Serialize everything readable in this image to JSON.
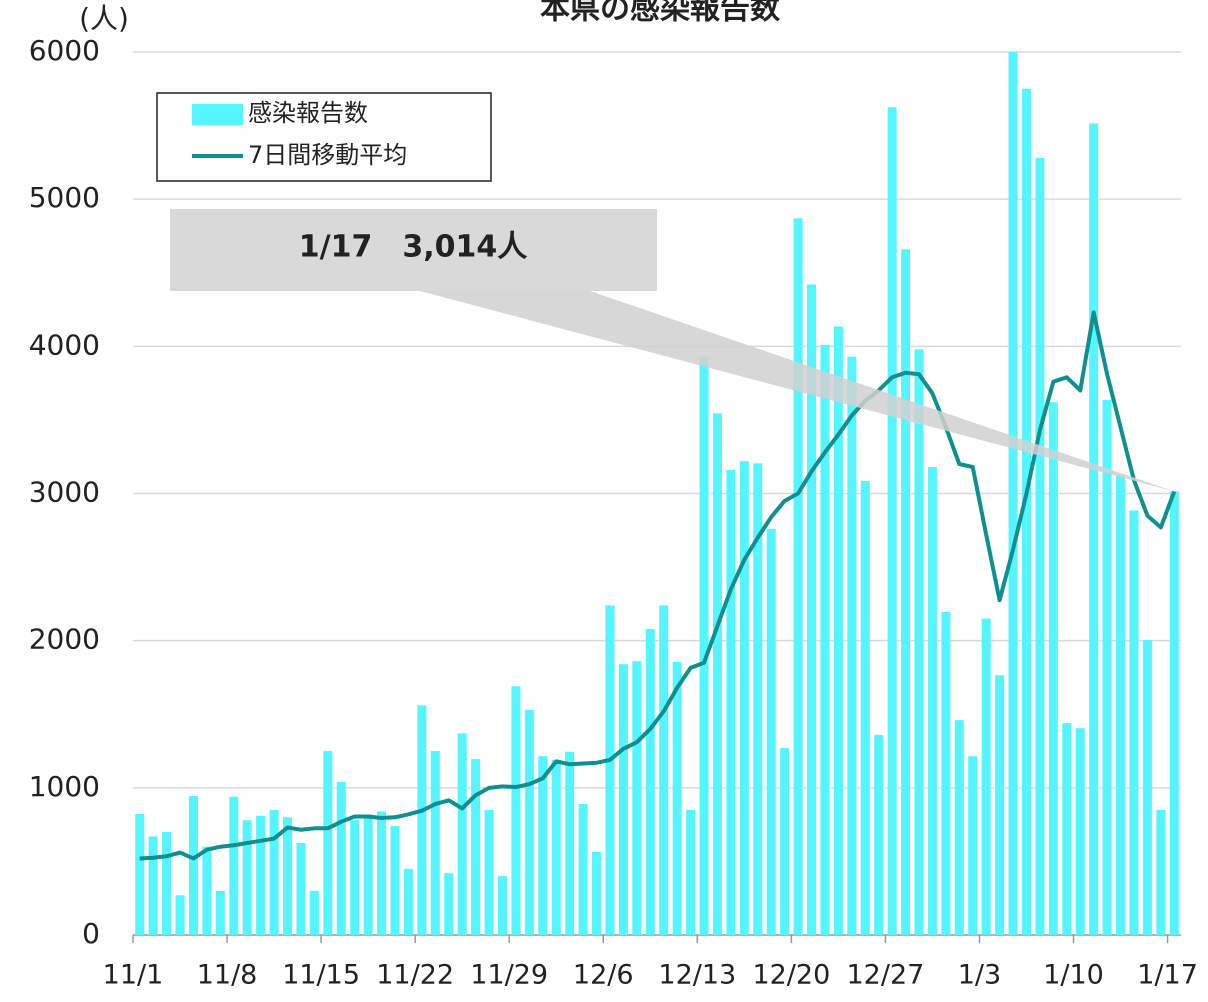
{
  "chart_data": {
    "type": "bar_line",
    "title": "本県の感染報告数",
    "ylabel": "(人)",
    "annotation": "1/17　3,014人",
    "categories": [
      "11/1",
      null,
      null,
      null,
      null,
      null,
      null,
      "11/8",
      null,
      null,
      null,
      null,
      null,
      null,
      "11/15",
      null,
      null,
      null,
      null,
      null,
      null,
      "11/22",
      null,
      null,
      null,
      null,
      null,
      null,
      "11/29",
      null,
      null,
      null,
      null,
      null,
      null,
      "12/6",
      null,
      null,
      null,
      null,
      null,
      null,
      "12/13",
      null,
      null,
      null,
      null,
      null,
      null,
      "12/20",
      null,
      null,
      null,
      null,
      null,
      null,
      "12/27",
      null,
      null,
      null,
      null,
      null,
      null,
      "1/3",
      null,
      null,
      null,
      null,
      null,
      null,
      "1/10",
      null,
      null,
      null,
      null,
      null,
      null,
      "1/17"
    ],
    "series": [
      {
        "name": "感染報告数",
        "color": "#55f5ff",
        "kind": "bar",
        "values": [
          822,
          670,
          700,
          270,
          945,
          600,
          300,
          940,
          780,
          810,
          850,
          800,
          625,
          300,
          1250,
          1040,
          780,
          800,
          840,
          740,
          450,
          1560,
          1250,
          420,
          1370,
          1195,
          850,
          400,
          1690,
          1530,
          1215,
          1190,
          1245,
          890,
          565,
          2240,
          1840,
          1860,
          2080,
          2240,
          1855,
          850,
          3930,
          3545,
          3160,
          3220,
          3205,
          2760,
          1270,
          4870,
          4420,
          4010,
          4135,
          3930,
          3085,
          1360,
          5625,
          4660,
          3980,
          3180,
          2195,
          1460,
          1215,
          2150,
          1765,
          6000,
          5750,
          5280,
          3620,
          1440,
          1405,
          5515,
          3635,
          3125,
          2885,
          2005,
          850,
          3014
        ]
      },
      {
        "name": "7日間移動平均",
        "color": "#0f8f8f",
        "kind": "line",
        "values": [
          520,
          525,
          535,
          560,
          520,
          580,
          600,
          610,
          625,
          640,
          655,
          730,
          715,
          725,
          725,
          770,
          805,
          805,
          795,
          800,
          820,
          845,
          890,
          915,
          860,
          950,
          1000,
          1010,
          1005,
          1025,
          1065,
          1180,
          1160,
          1165,
          1170,
          1190,
          1265,
          1310,
          1400,
          1520,
          1680,
          1815,
          1850,
          2100,
          2350,
          2550,
          2700,
          2840,
          2950,
          3000,
          3150,
          3280,
          3400,
          3530,
          3630,
          3700,
          3790,
          3820,
          3810,
          3680,
          3450,
          3200,
          3180,
          2720,
          2275,
          2620,
          3000,
          3430,
          3760,
          3790,
          3700,
          4230,
          3810,
          3450,
          3090,
          2850,
          2770,
          3014
        ]
      }
    ],
    "ylim": [
      0,
      6000
    ],
    "yticks": [
      0,
      1000,
      2000,
      3000,
      4000,
      5000,
      6000
    ],
    "grid": true
  }
}
